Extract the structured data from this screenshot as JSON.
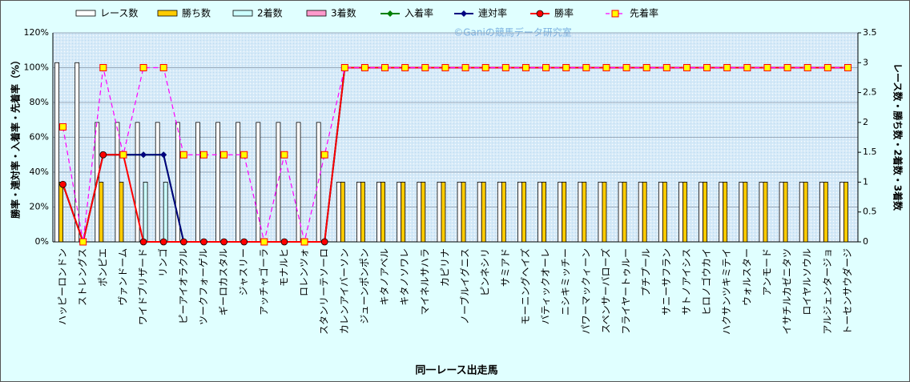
{
  "chart_data": {
    "type": "bar_line",
    "watermark": "©Ganiの競馬データ研究室",
    "xlabel": "同一レース出走馬",
    "ylabel": "勝率・連対率・入着率・先着率（%）",
    "y2label": "レース数・勝ち数・2着数・3着数",
    "categories": [
      "ハッピーロンドン",
      "ストレングス",
      "ポンピエ",
      "ヴァンドーム",
      "ワイドブリザード",
      "リンゴ",
      "ピーアイオラクル",
      "ツークフォーゲル",
      "ギーロカスタル",
      "ジャスリー",
      "アッチャゴーラ",
      "モナルヒ",
      "ロレンツォ",
      "スタンリーテソーロ",
      "カレンアイバーソン",
      "ジューンポンポン",
      "キタノアベル",
      "キタノソワレ",
      "マイネルサハラ",
      "カピリナ",
      "ノーブルイグニス",
      "ピンネシリ",
      "サミアド",
      "モーニングヘイズ",
      "バティックオーレ",
      "ニシキミッチー",
      "パワーマックィーン",
      "スペンサーバローズ",
      "フライヤートゥルー",
      "プチプール",
      "サニーサフラン",
      "サトノアイシス",
      "ヒロノゴウカイ",
      "ハクサンツキミテイ",
      "ウォルスター",
      "アンモード",
      "イサチルカゼニタツ",
      "ロイヤルソウル",
      "アルジェンタージョ",
      "トーセンサウダージ"
    ],
    "ylim": [
      0,
      120
    ],
    "yticks": [
      {
        "value": 0,
        "label": "0%"
      },
      {
        "value": 20,
        "label": "20%"
      },
      {
        "value": 40,
        "label": "40%"
      },
      {
        "value": 60,
        "label": "60%"
      },
      {
        "value": 80,
        "label": "80%"
      },
      {
        "value": 100,
        "label": "100%"
      },
      {
        "value": 120,
        "label": "120%"
      }
    ],
    "y2lim": [
      0,
      3.5
    ],
    "y2ticks": [
      0,
      0.5,
      1,
      1.5,
      2,
      2.5,
      3,
      3.5
    ],
    "grid": true,
    "series": [
      {
        "name": "レース数",
        "type": "bar",
        "axis": "y2",
        "color": "#ffffff",
        "values": [
          3,
          3,
          2,
          2,
          2,
          2,
          2,
          2,
          2,
          2,
          2,
          2,
          2,
          2,
          1,
          1,
          1,
          1,
          1,
          1,
          1,
          1,
          1,
          1,
          1,
          1,
          1,
          1,
          1,
          1,
          1,
          1,
          1,
          1,
          1,
          1,
          1,
          1,
          1,
          1
        ]
      },
      {
        "name": "勝ち数",
        "type": "bar",
        "axis": "y2",
        "color": "#ffcc00",
        "values": [
          1,
          0,
          1,
          1,
          0,
          0,
          0,
          0,
          0,
          0,
          0,
          0,
          0,
          0,
          1,
          1,
          1,
          1,
          1,
          1,
          1,
          1,
          1,
          1,
          1,
          1,
          1,
          1,
          1,
          1,
          1,
          1,
          1,
          1,
          1,
          1,
          1,
          1,
          1,
          1
        ]
      },
      {
        "name": "2着数",
        "type": "bar",
        "axis": "y2",
        "color": "#ccffff",
        "values": [
          0,
          0,
          0,
          0,
          1,
          1,
          0,
          0,
          0,
          0,
          0,
          0,
          0,
          0,
          0,
          0,
          0,
          0,
          0,
          0,
          0,
          0,
          0,
          0,
          0,
          0,
          0,
          0,
          0,
          0,
          0,
          0,
          0,
          0,
          0,
          0,
          0,
          0,
          0,
          0
        ]
      },
      {
        "name": "3着数",
        "type": "bar",
        "axis": "y2",
        "color": "#ff99cc",
        "values": [
          0,
          0,
          0,
          0,
          0,
          0,
          0,
          0,
          0,
          0,
          0,
          0,
          0,
          0,
          0,
          0,
          0,
          0,
          0,
          0,
          0,
          0,
          0,
          0,
          0,
          0,
          0,
          0,
          0,
          0,
          0,
          0,
          0,
          0,
          0,
          0,
          0,
          0,
          0,
          0
        ]
      },
      {
        "name": "入着率",
        "type": "line",
        "color": "#008000",
        "marker": "diamond",
        "values": [
          33,
          0,
          50,
          50,
          50,
          50,
          0,
          0,
          0,
          0,
          0,
          0,
          0,
          0,
          100,
          100,
          100,
          100,
          100,
          100,
          100,
          100,
          100,
          100,
          100,
          100,
          100,
          100,
          100,
          100,
          100,
          100,
          100,
          100,
          100,
          100,
          100,
          100,
          100,
          100
        ]
      },
      {
        "name": "連対率",
        "type": "line",
        "color": "#000080",
        "marker": "diamond",
        "values": [
          33,
          0,
          50,
          50,
          50,
          50,
          0,
          0,
          0,
          0,
          0,
          0,
          0,
          0,
          100,
          100,
          100,
          100,
          100,
          100,
          100,
          100,
          100,
          100,
          100,
          100,
          100,
          100,
          100,
          100,
          100,
          100,
          100,
          100,
          100,
          100,
          100,
          100,
          100,
          100
        ]
      },
      {
        "name": "勝率",
        "type": "line",
        "color": "#ff0000",
        "marker": "circle",
        "values": [
          33,
          0,
          50,
          50,
          0,
          0,
          0,
          0,
          0,
          0,
          0,
          0,
          0,
          0,
          100,
          100,
          100,
          100,
          100,
          100,
          100,
          100,
          100,
          100,
          100,
          100,
          100,
          100,
          100,
          100,
          100,
          100,
          100,
          100,
          100,
          100,
          100,
          100,
          100,
          100
        ]
      },
      {
        "name": "先着率",
        "type": "line",
        "color": "#ff00ff",
        "marker": "square",
        "dashed": true,
        "values": [
          66,
          0,
          100,
          50,
          100,
          100,
          50,
          50,
          50,
          50,
          0,
          50,
          0,
          50,
          100,
          100,
          100,
          100,
          100,
          100,
          100,
          100,
          100,
          100,
          100,
          100,
          100,
          100,
          100,
          100,
          100,
          100,
          100,
          100,
          100,
          100,
          100,
          100,
          100,
          100
        ]
      }
    ]
  }
}
